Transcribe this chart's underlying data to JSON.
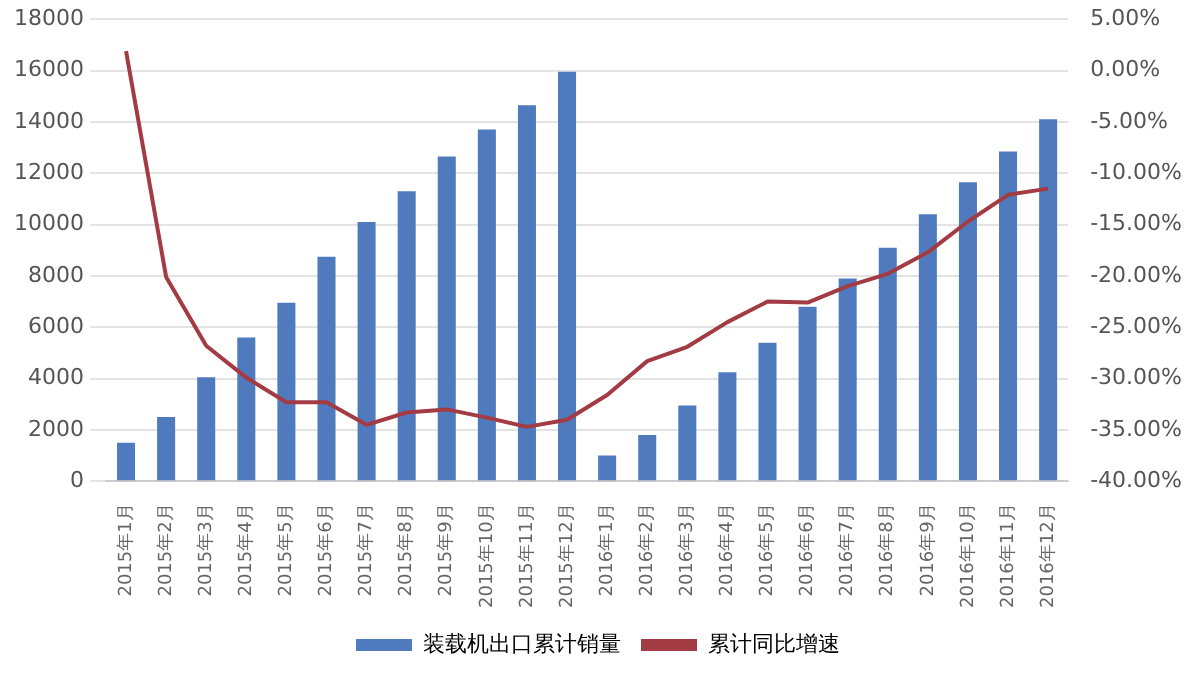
{
  "chart_data": {
    "type": "bar",
    "categories": [
      "2015年1月",
      "2015年2月",
      "2015年3月",
      "2015年4月",
      "2015年5月",
      "2015年6月",
      "2015年7月",
      "2015年8月",
      "2015年9月",
      "2015年10月",
      "2015年11月",
      "2015年12月",
      "2016年1月",
      "2016年2月",
      "2016年3月",
      "2016年4月",
      "2016年5月",
      "2016年6月",
      "2016年7月",
      "2016年8月",
      "2016年9月",
      "2016年10月",
      "2016年11月",
      "2016年12月"
    ],
    "series": [
      {
        "name": "装载机出口累计销量",
        "color": "#4f7bbe",
        "values": [
          1500,
          2500,
          4050,
          5600,
          6950,
          8750,
          10100,
          11300,
          12650,
          13700,
          14650,
          15950,
          1000,
          1800,
          2950,
          4250,
          5400,
          6800,
          7900,
          9100,
          10400,
          11650,
          12850,
          14100
        ]
      },
      {
        "name": "累计同比增速",
        "type": "line",
        "axis": "y2",
        "color": "#a33b44",
        "values": [
          1.9,
          -20.1,
          -26.8,
          -29.9,
          -32.3,
          -32.3,
          -34.5,
          -33.3,
          -33,
          -33.8,
          -34.7,
          -34,
          -31.6,
          -28.3,
          -26.9,
          -24.5,
          -22.5,
          -22.6,
          -21,
          -19.8,
          -17.7,
          -14.7,
          -12.1,
          -11.5
        ]
      }
    ],
    "ylim": [
      0,
      18000
    ],
    "yticks": [
      0,
      2000,
      4000,
      6000,
      8000,
      10000,
      12000,
      14000,
      16000,
      18000
    ],
    "y2lim": [
      -40,
      5
    ],
    "y2ticks": [
      {
        "value": -40,
        "label": "-40.00%"
      },
      {
        "value": -35,
        "label": "-35.00%"
      },
      {
        "value": -30,
        "label": "-30.00%"
      },
      {
        "value": -25,
        "label": "-25.00%"
      },
      {
        "value": -20,
        "label": "-20.00%"
      },
      {
        "value": -15,
        "label": "-15.00%"
      },
      {
        "value": -10,
        "label": "-10.00%"
      },
      {
        "value": -5,
        "label": "-5.00%"
      },
      {
        "value": 0,
        "label": "0.00%"
      },
      {
        "value": 5,
        "label": "5.00%"
      }
    ],
    "grid": "y",
    "legend": "bottom",
    "marker": "none"
  }
}
